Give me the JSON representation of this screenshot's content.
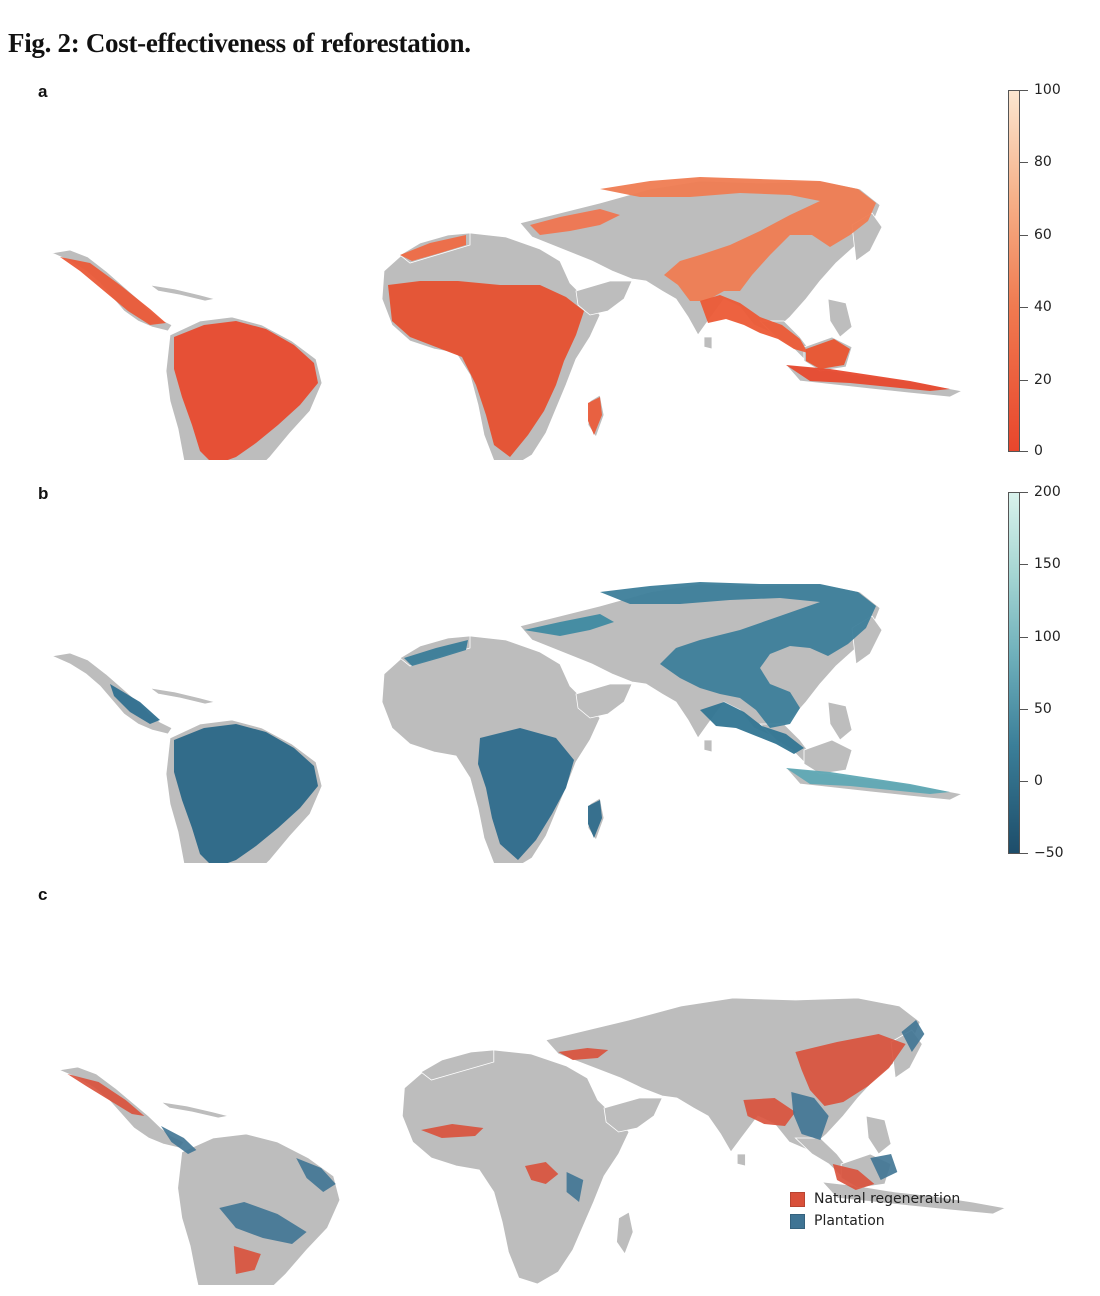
{
  "figure": {
    "title": "Fig. 2: Cost-effectiveness of reforestation."
  },
  "colors": {
    "land": "#bdbdbd",
    "border": "#ffffff",
    "panel_a_low": "#e8462c",
    "panel_a_high": "#fbe6d0",
    "panel_b_low": "#1d4d6a",
    "panel_b_high": "#d9f2ec",
    "natural_regeneration": "#d9503a",
    "plantation": "#3f7494"
  },
  "panels": [
    {
      "letter": "a",
      "colorbar": {
        "min": 0,
        "max": 100,
        "ticks": [
          "100",
          "80",
          "60",
          "40",
          "20",
          "0"
        ]
      }
    },
    {
      "letter": "b",
      "colorbar": {
        "min": -50,
        "max": 200,
        "ticks": [
          "200",
          "150",
          "100",
          "50",
          "0",
          "−50"
        ]
      }
    },
    {
      "letter": "c",
      "legend": [
        {
          "label": "Natural regeneration",
          "color": "#d9503a"
        },
        {
          "label": "Plantation",
          "color": "#3f7494"
        }
      ]
    }
  ]
}
